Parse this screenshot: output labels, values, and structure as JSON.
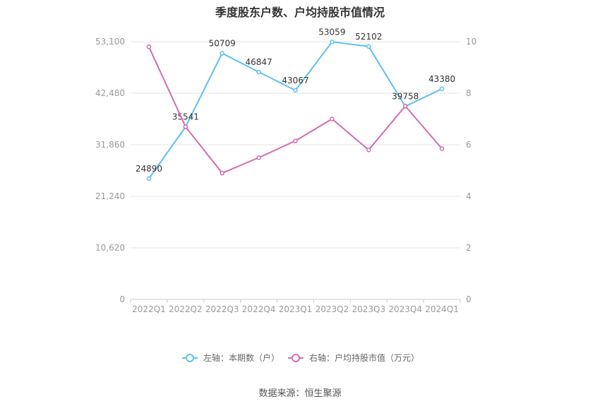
{
  "title": "季度股东户数、户均持股市值情况",
  "source": "数据来源：恒生聚源",
  "chart_data": {
    "type": "line",
    "categories": [
      "2022Q1",
      "2022Q2",
      "2022Q3",
      "2022Q4",
      "2023Q1",
      "2023Q2",
      "2023Q3",
      "2023Q4",
      "2024Q1"
    ],
    "series": [
      {
        "name": "左轴：本期数（户）",
        "axis": "left",
        "color": "#5bc0f0",
        "values": [
          24890,
          35541,
          50709,
          46847,
          43067,
          53059,
          52102,
          39758,
          43380
        ],
        "labels": [
          "24890",
          "35541",
          "50709",
          "46847",
          "43067",
          "53059",
          "52102",
          "39758",
          "43380"
        ]
      },
      {
        "name": "右轴：户均持股市值（万元）",
        "axis": "right",
        "color": "#d36bb0",
        "values": [
          9.8,
          6.7,
          4.9,
          5.5,
          6.15,
          7.0,
          5.8,
          7.5,
          5.85
        ]
      }
    ],
    "left_axis": {
      "ticks": [
        "0",
        "10,620",
        "21,240",
        "31,860",
        "42,480",
        "53,100"
      ],
      "min": 0,
      "max": 53100
    },
    "right_axis": {
      "ticks": [
        "0",
        "2",
        "4",
        "6",
        "8",
        "10"
      ],
      "min": 0,
      "max": 10
    },
    "grid": true,
    "legend": "bottom"
  }
}
